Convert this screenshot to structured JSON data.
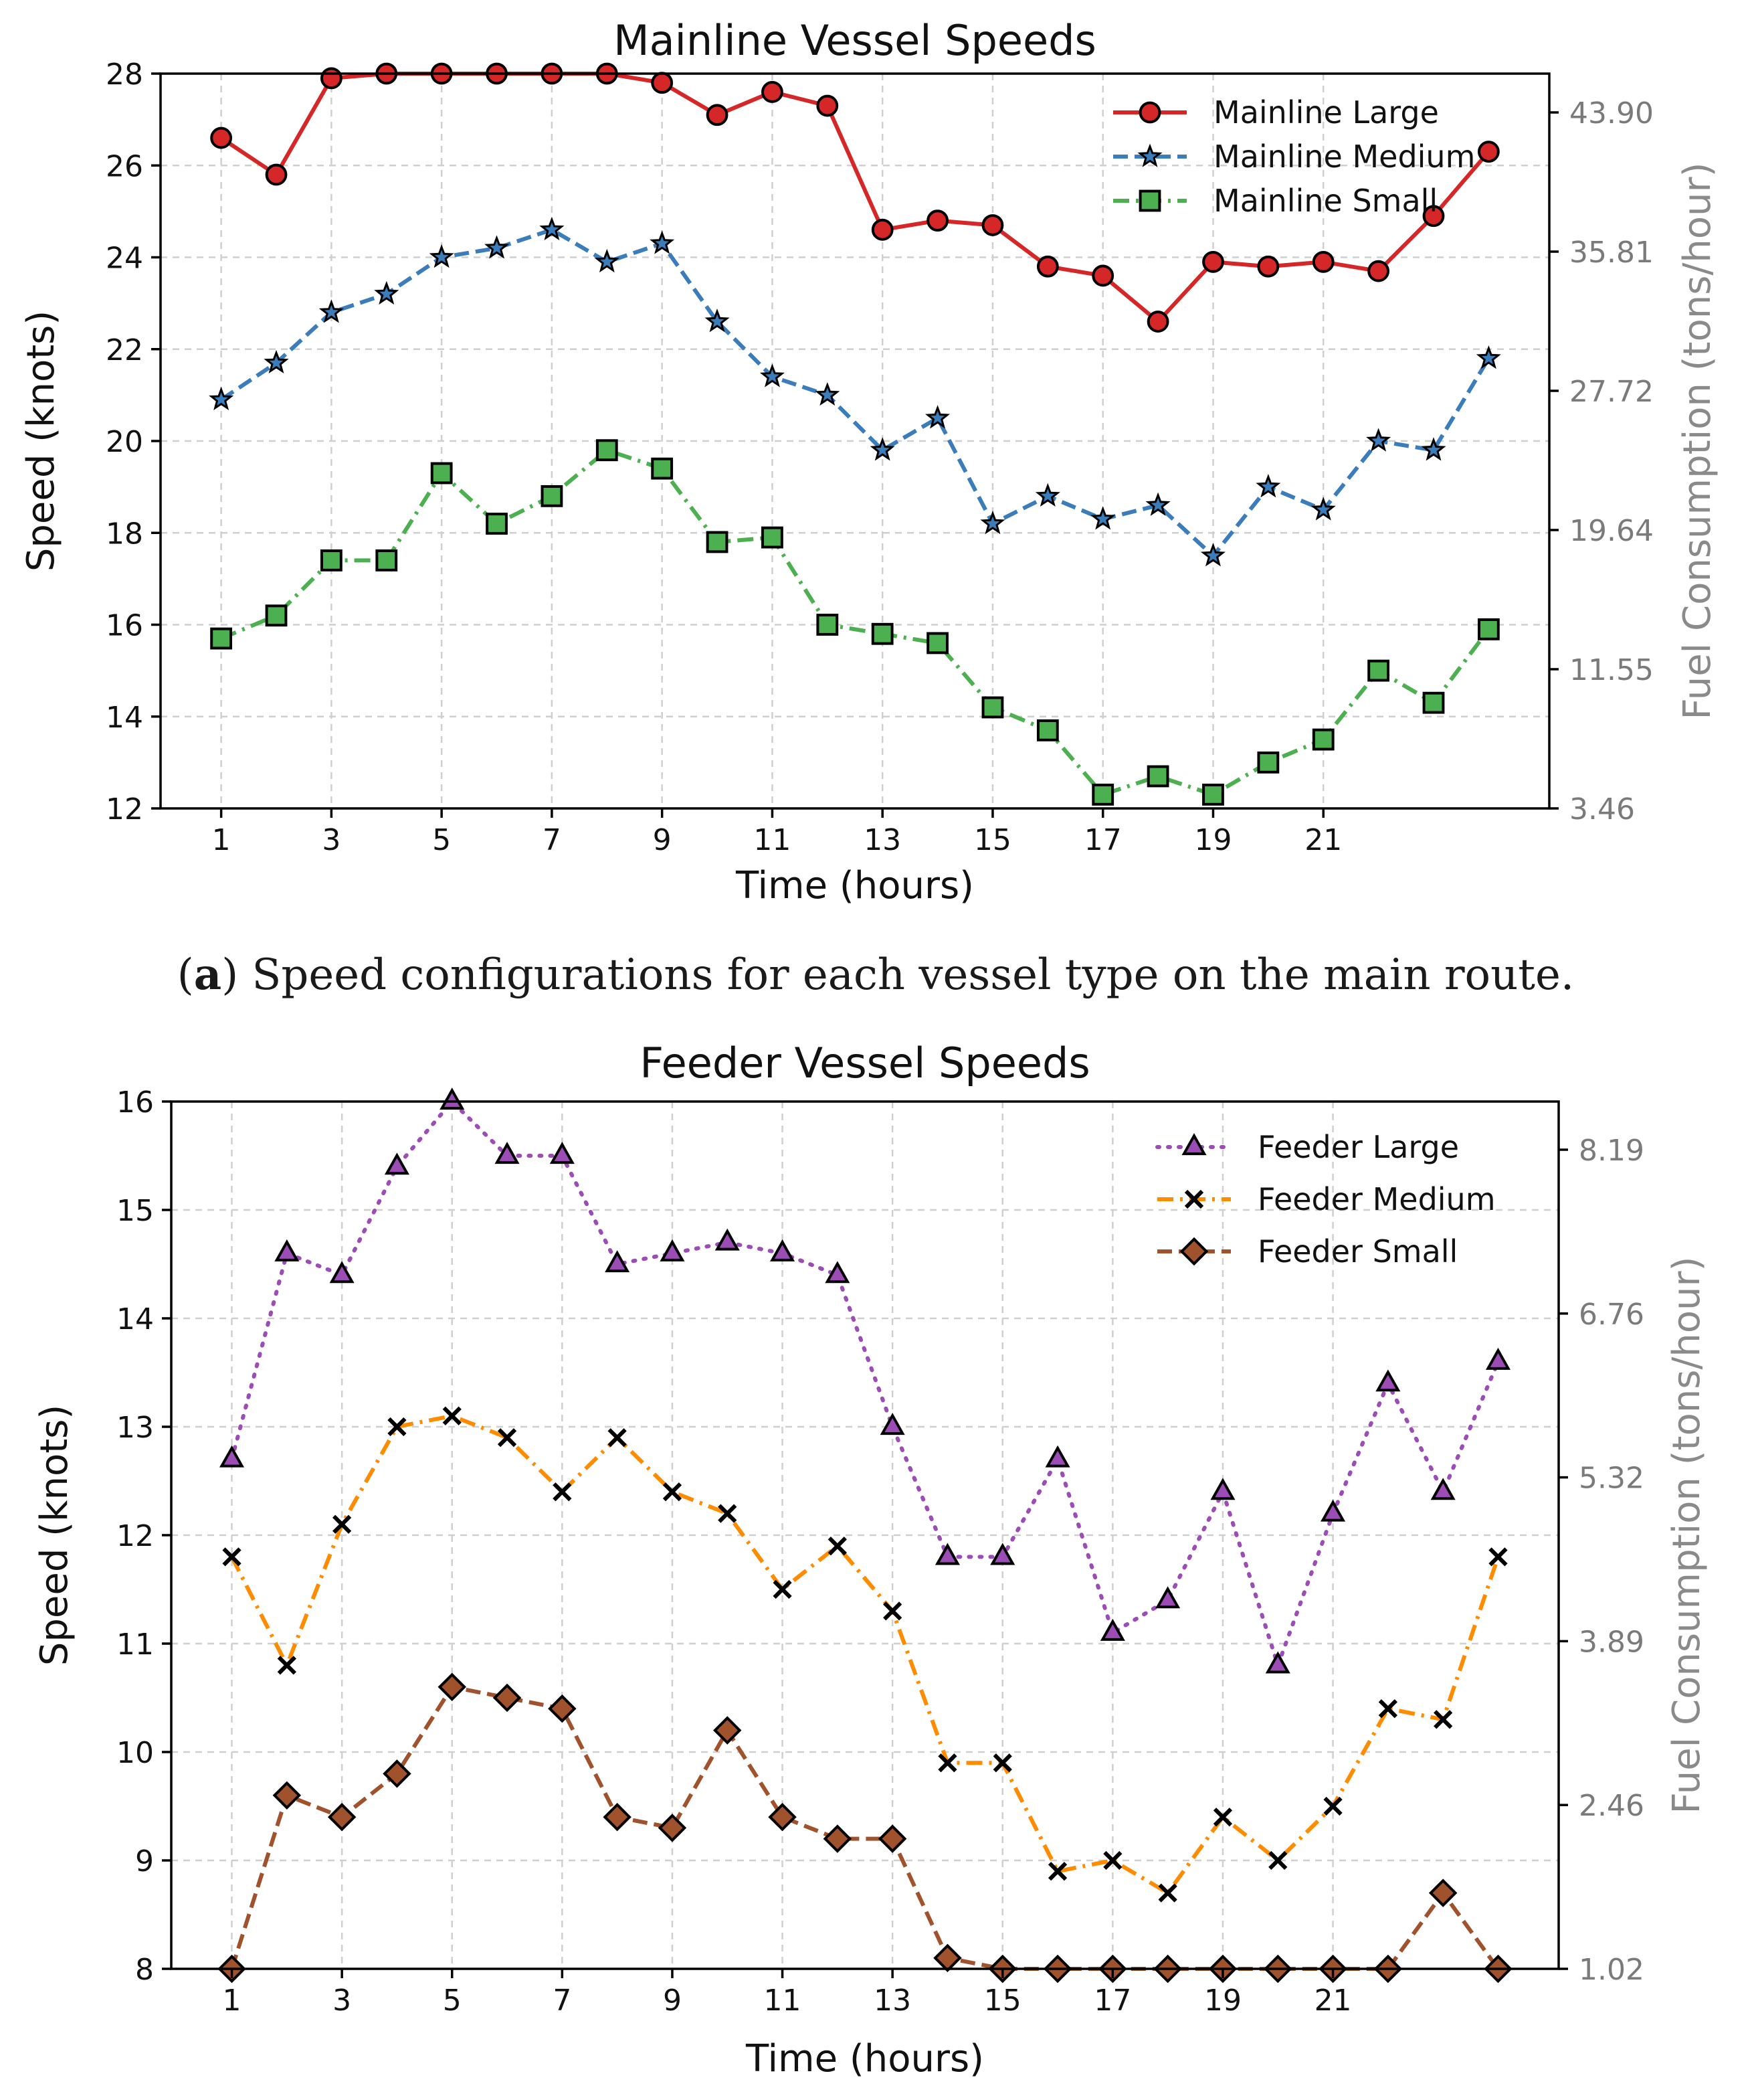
{
  "captions": {
    "a_letter": "a",
    "a_text": " Speed configurations for each vessel type on the main route."
  },
  "chart_data": [
    {
      "type": "line",
      "title": "Mainline Vessel Speeds",
      "xlabel": "Time (hours)",
      "ylabel": "Speed (knots)",
      "ylabel_right": "Fuel Consumption (tons/hour)",
      "x": [
        1,
        2,
        3,
        4,
        5,
        6,
        7,
        8,
        9,
        10,
        11,
        12,
        13,
        14,
        15,
        16,
        17,
        18,
        19,
        20,
        21,
        22,
        23,
        24
      ],
      "xticks": [
        "1",
        "3",
        "5",
        "7",
        "9",
        "11",
        "13",
        "15",
        "17",
        "19",
        "21"
      ],
      "xlim": [
        -0.1,
        25.1
      ],
      "ylim": [
        12,
        28
      ],
      "yticks": [
        "12",
        "14",
        "16",
        "18",
        "20",
        "22",
        "24",
        "26",
        "28"
      ],
      "right_ticks": [
        "3.46",
        "11.55",
        "19.64",
        "27.72",
        "35.81",
        "43.90"
      ],
      "grid": true,
      "legend": "top-right",
      "series": [
        {
          "name": "Mainline Large",
          "color": "#d62728",
          "marker": "circle",
          "dash": "solid",
          "values": [
            26.6,
            25.8,
            27.9,
            28.0,
            28.0,
            28.0,
            28.0,
            28.0,
            27.8,
            27.1,
            27.6,
            27.3,
            24.6,
            24.8,
            24.7,
            23.8,
            23.6,
            22.6,
            23.9,
            23.8,
            23.9,
            23.7,
            24.9,
            26.3
          ]
        },
        {
          "name": "Mainline Medium",
          "color": "#3a7dba",
          "marker": "star",
          "dash": "dashed",
          "values": [
            20.9,
            21.7,
            22.8,
            23.2,
            24.0,
            24.2,
            24.6,
            23.9,
            24.3,
            22.6,
            21.4,
            21.0,
            19.8,
            20.5,
            18.2,
            18.8,
            18.3,
            18.6,
            17.5,
            19.0,
            18.5,
            20.0,
            19.8,
            21.8
          ]
        },
        {
          "name": "Mainline Small",
          "color": "#4caf50",
          "marker": "square",
          "dash": "dashdot",
          "values": [
            15.7,
            16.2,
            17.4,
            17.4,
            19.3,
            18.2,
            18.8,
            19.8,
            19.4,
            17.8,
            17.9,
            16.0,
            15.8,
            15.6,
            14.2,
            13.7,
            12.3,
            12.7,
            12.3,
            13.0,
            13.5,
            15.0,
            14.3,
            15.9
          ]
        }
      ]
    },
    {
      "type": "line",
      "title": "Feeder Vessel Speeds",
      "xlabel": "Time (hours)",
      "ylabel": "Speed (knots)",
      "ylabel_right": "Fuel Consumption (tons/hour)",
      "x": [
        1,
        2,
        3,
        4,
        5,
        6,
        7,
        8,
        9,
        10,
        11,
        12,
        13,
        14,
        15,
        16,
        17,
        18,
        19,
        20,
        21,
        22,
        23,
        24
      ],
      "xticks": [
        "1",
        "3",
        "5",
        "7",
        "9",
        "11",
        "13",
        "15",
        "17",
        "19",
        "21"
      ],
      "xlim": [
        -0.1,
        25.1
      ],
      "ylim": [
        8,
        16
      ],
      "yticks": [
        "8",
        "9",
        "10",
        "11",
        "12",
        "13",
        "14",
        "15",
        "16"
      ],
      "right_ticks": [
        "1.02",
        "2.46",
        "3.89",
        "5.32",
        "6.76",
        "8.19"
      ],
      "grid": true,
      "legend": "top-right",
      "series": [
        {
          "name": "Feeder Large",
          "color": "#9b4db5",
          "marker": "triangle",
          "dash": "dotted",
          "values": [
            12.7,
            14.6,
            14.4,
            15.4,
            16.0,
            15.5,
            15.5,
            14.5,
            14.6,
            14.7,
            14.6,
            14.4,
            13.0,
            11.8,
            11.8,
            12.7,
            11.1,
            11.4,
            12.4,
            10.8,
            12.2,
            13.4,
            12.4,
            13.6
          ]
        },
        {
          "name": "Feeder Medium",
          "color": "#ff8c00",
          "marker": "x",
          "dash": "dashdot",
          "values": [
            11.8,
            10.8,
            12.1,
            13.0,
            13.1,
            12.9,
            12.4,
            12.9,
            12.4,
            12.2,
            11.5,
            11.9,
            11.3,
            9.9,
            9.9,
            8.9,
            9.0,
            8.7,
            9.4,
            9.0,
            9.5,
            10.4,
            10.3,
            11.8
          ]
        },
        {
          "name": "Feeder Small",
          "color": "#a0522d",
          "marker": "diamond",
          "dash": "dashed",
          "values": [
            8.0,
            9.6,
            9.4,
            9.8,
            10.6,
            10.5,
            10.4,
            9.4,
            9.3,
            10.2,
            9.4,
            9.2,
            9.2,
            8.1,
            8.0,
            8.0,
            8.0,
            8.0,
            8.0,
            8.0,
            8.0,
            8.0,
            8.7,
            8.0
          ]
        }
      ]
    }
  ]
}
